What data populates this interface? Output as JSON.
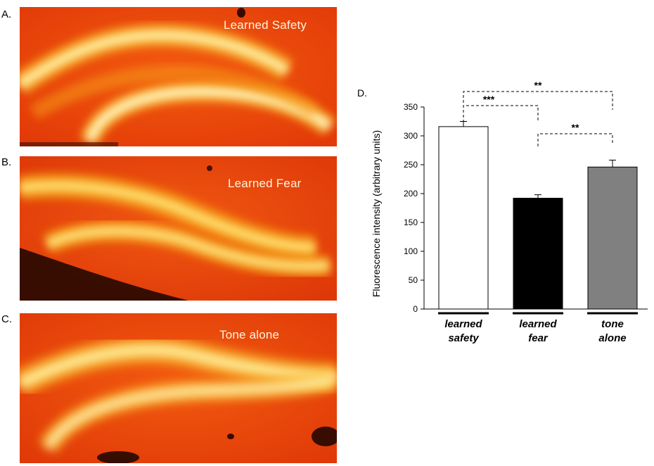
{
  "panels": [
    {
      "letter": "A.",
      "label": "Learned Safety"
    },
    {
      "letter": "B.",
      "label": "Learned Fear"
    },
    {
      "letter": "C.",
      "label": "Tone alone"
    }
  ],
  "chart_data": {
    "type": "bar",
    "panel_letter": "D.",
    "categories": [
      [
        "learned",
        "safety"
      ],
      [
        "learned",
        "fear"
      ],
      [
        "tone",
        "alone"
      ]
    ],
    "values": [
      316,
      192,
      246
    ],
    "errors": [
      9,
      6,
      12
    ],
    "bar_colors": [
      "#ffffff",
      "#000000",
      "#808080"
    ],
    "ylabel": "Fluorescence intensity (arbitrary units)",
    "ylim": [
      0,
      350
    ],
    "yticks": [
      0,
      50,
      100,
      150,
      200,
      250,
      300,
      350
    ],
    "grid": false,
    "significance": [
      {
        "from": 0,
        "to": 2,
        "label": "**"
      },
      {
        "from": 0,
        "to": 1,
        "label": "***"
      },
      {
        "from": 1,
        "to": 2,
        "label": "**"
      }
    ]
  }
}
